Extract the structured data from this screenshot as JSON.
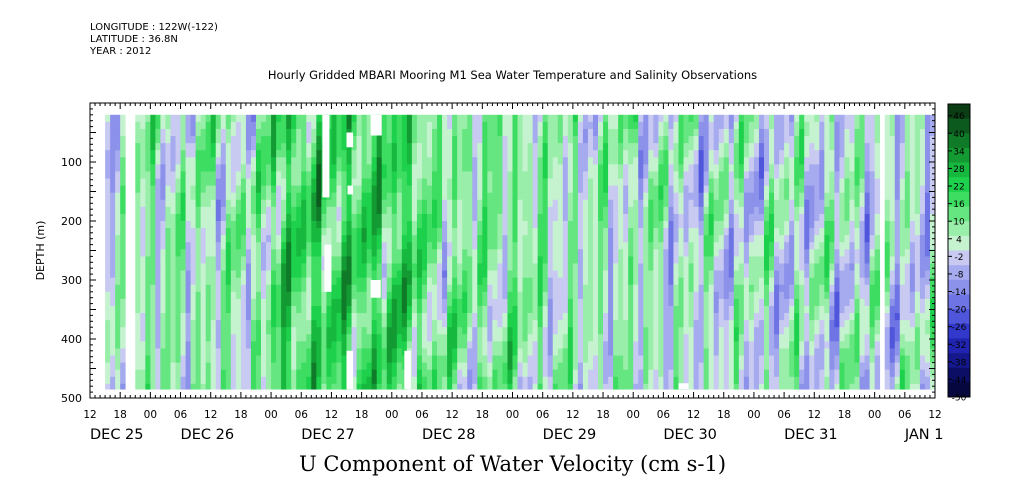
{
  "header": {
    "longitude": "LONGITUDE : 122W(-122)",
    "latitude": "LATITUDE : 36.8N",
    "year": "YEAR : 2012"
  },
  "chart_data": {
    "type": "heatmap",
    "title": "Hourly Gridded MBARI Mooring M1 Sea Water Temperature and Salinity Observations",
    "variable_label": "U Component of Water Velocity (cm s-1)",
    "xlabel": "",
    "ylabel": "DEPTH (m)",
    "x_range_hours": [
      0,
      168
    ],
    "x_hour_ticks": [
      "12",
      "18",
      "00",
      "06",
      "12",
      "18",
      "00",
      "06",
      "12",
      "18",
      "00",
      "06",
      "12",
      "18",
      "00",
      "06",
      "12",
      "18",
      "00",
      "06",
      "12",
      "18",
      "00",
      "06",
      "12",
      "18",
      "00",
      "06",
      "12"
    ],
    "x_date_labels": [
      {
        "label": "DEC 25",
        "hour": 0
      },
      {
        "label": "DEC 26",
        "hour": 18
      },
      {
        "label": "DEC 27",
        "hour": 42
      },
      {
        "label": "DEC 28",
        "hour": 66
      },
      {
        "label": "DEC 29",
        "hour": 90
      },
      {
        "label": "DEC 30",
        "hour": 114
      },
      {
        "label": "DEC 31",
        "hour": 138
      },
      {
        "label": "JAN  1",
        "hour": 162
      }
    ],
    "y_range_m": [
      0,
      500
    ],
    "y_ticks": [
      100,
      200,
      300,
      400,
      500
    ],
    "y_reversed": true,
    "data_depth_range_m": [
      20,
      485
    ],
    "colorbar": {
      "min": -50,
      "max": 50,
      "step": 6,
      "tick_labels": [
        "46",
        "40",
        "34",
        "28",
        "22",
        "16",
        "10",
        "4",
        "-2",
        "-8",
        "-14",
        "-20",
        "-26",
        "-32",
        "-38",
        "-44",
        "-50"
      ],
      "colors_high_to_low": [
        "#0b3d14",
        "#0d5a1e",
        "#0f7a28",
        "#139a32",
        "#16b83e",
        "#1ed14c",
        "#3ddd62",
        "#66e680",
        "#99eea9",
        "#c6f3cf",
        "#c8caf2",
        "#a6aaee",
        "#8c91ea",
        "#6e74e4",
        "#4f56dc",
        "#3338cc",
        "#2024b0",
        "#14188c",
        "#0c0e66",
        "#06073f"
      ]
    },
    "gaps_hours": [
      [
        0,
        3
      ],
      [
        7.4,
        8.8
      ],
      [
        157,
        158.5
      ],
      [
        167.6,
        168
      ]
    ],
    "missing_patches": [
      {
        "h0": 46.2,
        "h1": 47.6,
        "d0": 20,
        "d1": 160
      },
      {
        "h0": 46.6,
        "h1": 48.0,
        "d0": 240,
        "d1": 320
      },
      {
        "h0": 51.0,
        "h1": 52.3,
        "d0": 50,
        "d1": 75
      },
      {
        "h0": 51.2,
        "h1": 52.3,
        "d0": 140,
        "d1": 155
      },
      {
        "h0": 51.0,
        "h1": 52.3,
        "d0": 420,
        "d1": 485
      },
      {
        "h0": 55.8,
        "h1": 58.0,
        "d0": 20,
        "d1": 55
      },
      {
        "h0": 55.8,
        "h1": 57.8,
        "d0": 300,
        "d1": 330
      },
      {
        "h0": 62.5,
        "h1": 63.8,
        "d0": 420,
        "d1": 485
      },
      {
        "h0": 117.0,
        "h1": 119.0,
        "d0": 475,
        "d1": 485
      }
    ],
    "description_regions": [
      {
        "h0": 3,
        "h1": 7.4,
        "mean": -1
      },
      {
        "h0": 8.8,
        "h1": 36,
        "mean": 5
      },
      {
        "h0": 36,
        "h1": 66,
        "mean": 18
      },
      {
        "h0": 66,
        "h1": 90,
        "mean": 8
      },
      {
        "h0": 90,
        "h1": 114,
        "mean": 4
      },
      {
        "h0": 114,
        "h1": 138,
        "mean": 1
      },
      {
        "h0": 138,
        "h1": 157,
        "mean": 1
      },
      {
        "h0": 158.5,
        "h1": 167.6,
        "mean": 0
      }
    ]
  }
}
